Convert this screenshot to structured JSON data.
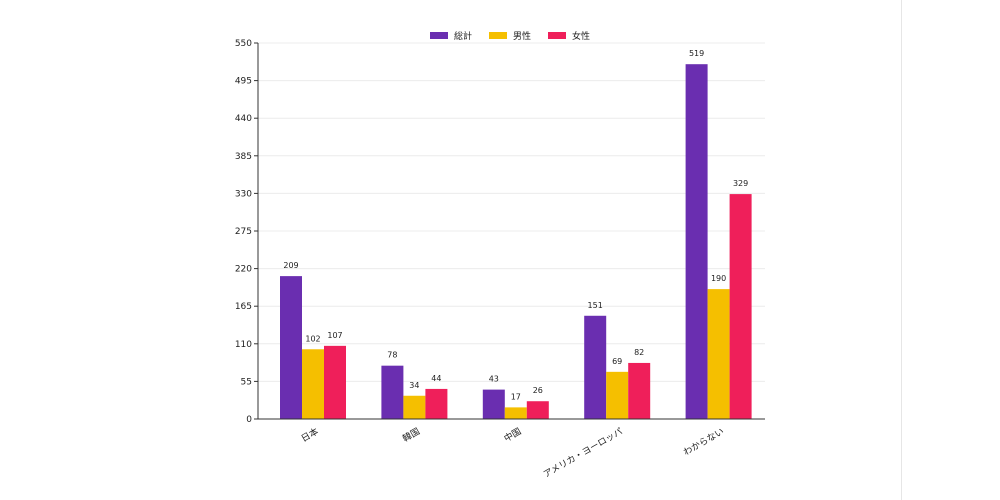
{
  "chart_data": {
    "type": "bar",
    "categories": [
      "日本",
      "韓国",
      "中国",
      "アメリカ・ヨーロッパ",
      "わからない"
    ],
    "series": [
      {
        "name": "総計",
        "color": "#6a2eb0",
        "values": [
          209,
          78,
          43,
          151,
          519
        ]
      },
      {
        "name": "男性",
        "color": "#f5bf00",
        "values": [
          102,
          34,
          17,
          69,
          190
        ]
      },
      {
        "name": "女性",
        "color": "#ef1f5a",
        "values": [
          107,
          44,
          26,
          82,
          329
        ]
      }
    ],
    "ylim": [
      0,
      550
    ],
    "yticks": [
      0,
      55,
      110,
      165,
      220,
      275,
      330,
      385,
      440,
      495,
      550
    ],
    "grid": true,
    "legend_position": "top-center",
    "title": "",
    "xlabel": "",
    "ylabel": ""
  }
}
